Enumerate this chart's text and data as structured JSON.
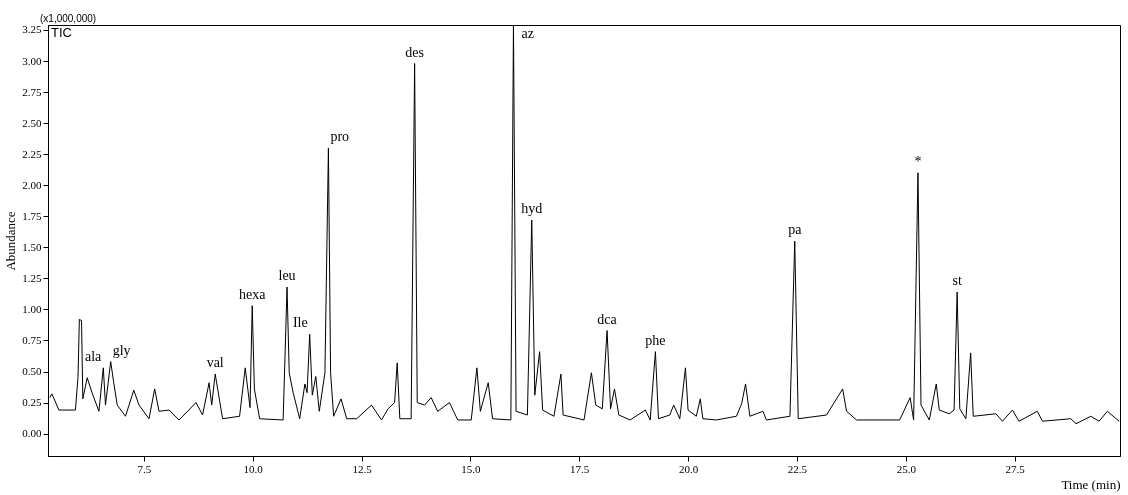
{
  "chart_data": {
    "type": "line",
    "xlabel": "Time (min)",
    "ylabel": "Abundance",
    "xlim": [
      5.3,
      29.92
    ],
    "ylim": [
      -0.18,
      3.29
    ],
    "xticks": [
      7.5,
      {
        "value": 10,
        "label": "10.0"
      },
      12.5,
      {
        "value": 15,
        "label": "15.0"
      },
      17.5,
      {
        "value": 20,
        "label": "20.0"
      },
      22.5,
      {
        "value": 25,
        "label": "25.0"
      },
      27.5
    ],
    "yticks": [
      {
        "value": 0,
        "label": "0.00"
      },
      0.25,
      {
        "value": 0.5,
        "label": "0.50"
      },
      0.75,
      {
        "value": 1,
        "label": "1.00"
      },
      1.25,
      {
        "value": 1.5,
        "label": "1.50"
      },
      1.75,
      {
        "value": 2,
        "label": "2.00"
      },
      2.25,
      {
        "value": 2.5,
        "label": "2.50"
      },
      2.75,
      {
        "value": 3,
        "label": "3.00"
      },
      3.25
    ],
    "grid": false,
    "x": [
      5.34,
      5.39,
      5.55,
      5.93,
      5.99,
      6.02,
      6.07,
      6.1,
      6.2,
      6.31,
      6.47,
      6.57,
      6.62,
      6.74,
      6.81,
      6.89,
      7.08,
      7.27,
      7.39,
      7.62,
      7.75,
      7.85,
      8.08,
      8.31,
      8.7,
      8.85,
      9.0,
      9.06,
      9.14,
      9.31,
      9.7,
      9.83,
      9.94,
      9.99,
      10.04,
      10.16,
      10.7,
      10.79,
      10.84,
      10.93,
      11.08,
      11.2,
      11.25,
      11.31,
      11.37,
      11.45,
      11.53,
      11.66,
      11.74,
      11.79,
      11.86,
      12.03,
      12.16,
      12.39,
      12.73,
      12.96,
      13.11,
      13.26,
      13.32,
      13.38,
      13.64,
      13.72,
      13.78,
      13.95,
      14.1,
      14.25,
      14.52,
      14.71,
      15.02,
      15.15,
      15.23,
      15.41,
      15.51,
      15.93,
      15.99,
      16.05,
      16.31,
      16.41,
      16.48,
      16.59,
      16.66,
      16.92,
      17.08,
      17.13,
      17.61,
      17.78,
      17.88,
      18.03,
      18.14,
      18.22,
      18.31,
      18.41,
      18.67,
      19.02,
      19.13,
      19.25,
      19.32,
      19.58,
      19.67,
      19.81,
      19.94,
      20.0,
      20.19,
      20.28,
      20.34,
      20.65,
      21.11,
      21.23,
      21.32,
      21.42,
      21.72,
      21.8,
      22.34,
      22.45,
      22.53,
      23.18,
      23.55,
      23.64,
      23.87,
      24.86,
      25.1,
      25.18,
      25.28,
      25.35,
      25.54,
      25.7,
      25.77,
      26.0,
      26.11,
      26.18,
      26.24,
      26.38,
      26.49,
      26.55,
      27.07,
      27.22,
      27.45,
      27.6,
      28.02,
      28.14,
      28.79,
      28.91,
      29.25,
      29.44,
      29.63,
      29.9
    ],
    "series": [
      {
        "color": "#000000",
        "values": [
          0.29,
          0.32,
          0.19,
          0.19,
          0.46,
          0.92,
          0.91,
          0.28,
          0.45,
          0.33,
          0.18,
          0.53,
          0.23,
          0.58,
          0.41,
          0.23,
          0.14,
          0.35,
          0.23,
          0.12,
          0.36,
          0.18,
          0.19,
          0.11,
          0.25,
          0.15,
          0.41,
          0.23,
          0.48,
          0.12,
          0.14,
          0.53,
          0.21,
          1.03,
          0.36,
          0.12,
          0.11,
          1.18,
          0.49,
          0.33,
          0.12,
          0.4,
          0.33,
          0.8,
          0.31,
          0.46,
          0.18,
          0.49,
          2.3,
          0.49,
          0.14,
          0.28,
          0.12,
          0.12,
          0.23,
          0.11,
          0.2,
          0.25,
          0.57,
          0.12,
          0.12,
          2.98,
          0.25,
          0.23,
          0.29,
          0.18,
          0.25,
          0.11,
          0.11,
          0.53,
          0.18,
          0.41,
          0.12,
          0.11,
          3.29,
          0.18,
          0.15,
          1.72,
          0.31,
          0.66,
          0.19,
          0.14,
          0.48,
          0.15,
          0.11,
          0.49,
          0.23,
          0.2,
          0.83,
          0.2,
          0.36,
          0.15,
          0.11,
          0.19,
          0.11,
          0.66,
          0.12,
          0.15,
          0.23,
          0.12,
          0.53,
          0.19,
          0.14,
          0.28,
          0.12,
          0.11,
          0.14,
          0.24,
          0.4,
          0.14,
          0.18,
          0.11,
          0.14,
          1.55,
          0.12,
          0.15,
          0.36,
          0.18,
          0.11,
          0.11,
          0.29,
          0.11,
          2.1,
          0.23,
          0.11,
          0.4,
          0.19,
          0.16,
          0.19,
          1.14,
          0.2,
          0.12,
          0.65,
          0.14,
          0.16,
          0.1,
          0.19,
          0.1,
          0.18,
          0.1,
          0.12,
          0.08,
          0.14,
          0.1,
          0.18,
          0.1
        ]
      }
    ],
    "annotations": [
      "(x1,000,000)",
      "TIC",
      {
        "text": "ala",
        "x": 6.57,
        "y": 0.53
      },
      {
        "text": "gly",
        "x": 6.74,
        "y": 0.58
      },
      {
        "text": "val",
        "x": 9.14,
        "y": 0.48
      },
      {
        "text": "hexa",
        "x": 9.99,
        "y": 1.03
      },
      {
        "text": "leu",
        "x": 10.79,
        "y": 1.18
      },
      {
        "text": "Ile",
        "x": 11.31,
        "y": 0.8
      },
      {
        "text": "pro",
        "x": 11.74,
        "y": 2.3
      },
      {
        "text": "des",
        "x": 13.72,
        "y": 2.98
      },
      {
        "text": "az",
        "x": 15.99,
        "y": 3.29
      },
      {
        "text": "hyd",
        "x": 16.41,
        "y": 1.72
      },
      {
        "text": "dca",
        "x": 18.14,
        "y": 0.83
      },
      {
        "text": "phe",
        "x": 19.25,
        "y": 0.66
      },
      {
        "text": "pa",
        "x": 22.45,
        "y": 1.55
      },
      {
        "text": "*",
        "x": 25.28,
        "y": 2.1
      },
      {
        "text": "st",
        "x": 26.18,
        "y": 1.14
      }
    ]
  }
}
